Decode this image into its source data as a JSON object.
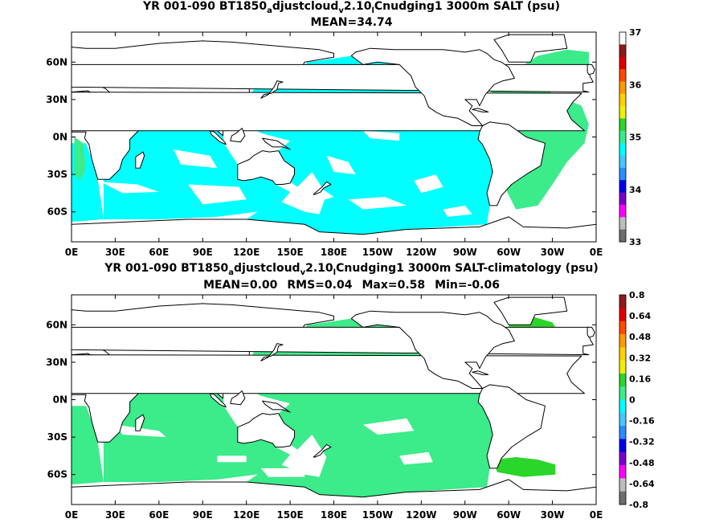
{
  "panels": [
    {
      "title_parts": [
        "YR 001-090 BT1850",
        "a",
        "djustcloud",
        "v",
        "2.10",
        "l",
        "Cnudging1 3000m SALT (psu)"
      ],
      "stats": [
        "MEAN=34.74"
      ],
      "colorbar": {
        "labels": [
          "37",
          "36",
          "35",
          "34",
          "33"
        ],
        "colors": [
          "#ffffff",
          "#8c1a1a",
          "#e00000",
          "#ff4a00",
          "#ff9a00",
          "#ffd200",
          "#f0f000",
          "#2ad62a",
          "#3ceb8a",
          "#00ffff",
          "#46c8ff",
          "#2b8cff",
          "#0000e6",
          "#7a00cc",
          "#ff00ff",
          "#bdbdbd",
          "#6e6e6e"
        ]
      },
      "fill_color": "#00ffff",
      "extras": [
        {
          "color": "#00ffff",
          "lon": [
            262,
            272,
            282,
            282,
            275,
            262
          ],
          "lat": [
            52,
            62,
            60,
            48,
            42,
            44
          ]
        },
        {
          "color": "#3ceb8a",
          "lon": [
            288,
            300,
            315,
            330,
            350,
            355,
            352,
            340,
            330,
            320,
            305,
            295,
            288
          ],
          "lat": [
            38,
            43,
            44,
            35,
            25,
            10,
            -5,
            -20,
            -38,
            -55,
            -58,
            -35,
            -10
          ]
        },
        {
          "color": "#3ceb8a",
          "lon": [
            300,
            320,
            340,
            355,
            355,
            340,
            320,
            300
          ],
          "lat": [
            50,
            65,
            70,
            68,
            55,
            45,
            42,
            45
          ]
        },
        {
          "color": "#3ceb8a",
          "lon": [
            2,
            8,
            10,
            6,
            2
          ],
          "lat": [
            0,
            -5,
            -25,
            -35,
            -30
          ]
        },
        {
          "color": "#2ad62a",
          "lon": [
            282,
            292,
            296,
            286
          ],
          "lat": [
            19,
            19,
            16,
            16
          ]
        }
      ]
    },
    {
      "title_parts": [
        "YR 001-090 BT1850",
        "a",
        "djustcloud",
        "v",
        "2.10",
        "l",
        "Cnudging1 3000m SALT-climatology (psu)"
      ],
      "stats": [
        "MEAN=0.00",
        "RMS=0.04",
        "Max=0.58",
        "Min=-0.06"
      ],
      "colorbar": {
        "labels": [
          "0.8",
          "0.64",
          "0.48",
          "0.32",
          "0.16",
          "0",
          "-0.16",
          "-0.32",
          "-0.48",
          "-0.64",
          "-0.8"
        ],
        "colors": [
          "#8c1a1a",
          "#e00000",
          "#ff4a00",
          "#ff9a00",
          "#ffd200",
          "#f0f000",
          "#2ad62a",
          "#3ceb8a",
          "#00ffff",
          "#46c8ff",
          "#2b8cff",
          "#0000e6",
          "#7a00cc",
          "#ff00ff",
          "#bdbdbd",
          "#6e6e6e"
        ]
      },
      "fill_color": "#3ceb8a",
      "extras": [
        {
          "color": "#2ad62a",
          "lon": [
            300,
            318,
            330,
            335,
            330,
            310,
            300
          ],
          "lat": [
            62,
            66,
            62,
            52,
            45,
            44,
            50
          ]
        },
        {
          "color": "#2ad62a",
          "lon": [
            290,
            305,
            320,
            332,
            332,
            310,
            292
          ],
          "lat": [
            -48,
            -46,
            -48,
            -52,
            -60,
            -62,
            -58
          ]
        },
        {
          "color": "#ff9a00",
          "lon": [
            283,
            290,
            296,
            290
          ],
          "lat": [
            18,
            19,
            16,
            15
          ]
        },
        {
          "color": "#e00000",
          "lon": [
            280,
            284,
            284,
            280
          ],
          "lat": [
            21,
            21,
            19,
            19
          ]
        }
      ]
    }
  ],
  "lon_labels": [
    "0E",
    "30E",
    "60E",
    "90E",
    "120E",
    "150E",
    "180E",
    "150W",
    "120W",
    "90W",
    "60W",
    "30W",
    "0E"
  ],
  "lat_labels": [
    "60N",
    "30N",
    "0N",
    "30S",
    "60S"
  ]
}
